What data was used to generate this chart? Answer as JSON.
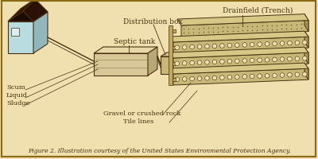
{
  "bg_color": "#f0e0b0",
  "border_color": "#8B6914",
  "line_color": "#4a3010",
  "house_wall_front": "#b8dce0",
  "house_wall_side": "#90b8bc",
  "house_wall_bottom": "#d8eef0",
  "house_roof_front": "#1a0a00",
  "house_roof_top": "#2a1005",
  "house_roof_side": "#5a2010",
  "tank_face": "#d8c898",
  "tank_top": "#e8d8a8",
  "tank_side": "#b8a878",
  "tank_layer1": "#c0b080",
  "tank_layer2": "#a89868",
  "dist_box_face": "#c8b878",
  "dist_box_top": "#d8c888",
  "dist_box_side": "#a89858",
  "trench_gravel": "#c8b878",
  "trench_gravel_dark": "#b8a868",
  "trench_top_face": "#d8c888",
  "trench_side_face": "#a89858",
  "gravel_dot": "#7a6840",
  "pipe_color": "#c0a860",
  "caption": "Figure 2. Illustration courtesy of the United States Environmental Protection Agency.",
  "labels": {
    "distribution_box": "Distribution box",
    "septic_tank": "Septic tank",
    "drainfield": "Drainfield (Trench)",
    "scum": "Scum",
    "liquid": "Liquid",
    "sludge": "Sludge",
    "gravel": "Gravel or crushed rock",
    "tile_lines": "Tile lines"
  }
}
